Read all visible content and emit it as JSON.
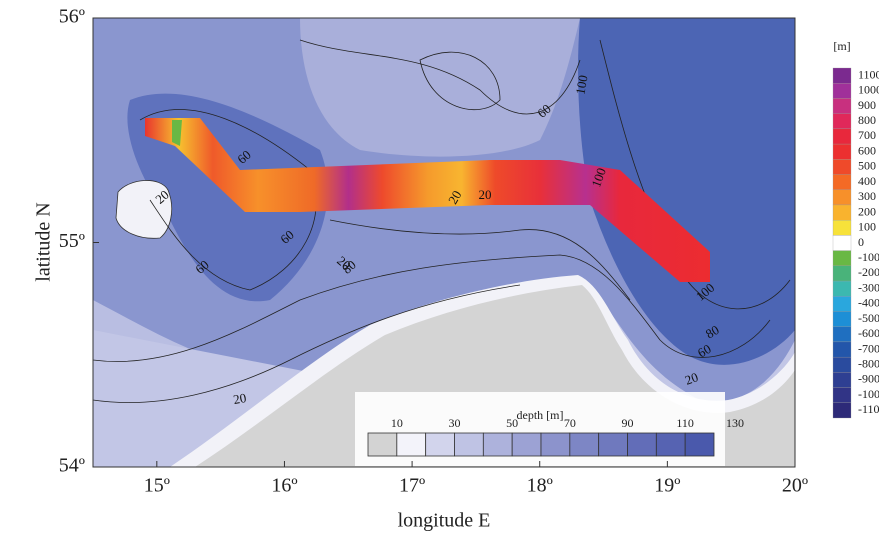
{
  "map": {
    "xlabel": "longitude E",
    "ylabel": "latitude N",
    "xlim": [
      14.5,
      20
    ],
    "ylim": [
      54,
      56
    ],
    "xticks": [
      {
        "value": 15,
        "label": "15º"
      },
      {
        "value": 16,
        "label": "16º"
      },
      {
        "value": 17,
        "label": "17º"
      },
      {
        "value": 18,
        "label": "18º"
      },
      {
        "value": 19,
        "label": "19º"
      },
      {
        "value": 20,
        "label": "20º"
      }
    ],
    "yticks": [
      {
        "value": 54,
        "label": "54º"
      },
      {
        "value": 55,
        "label": "55º"
      },
      {
        "value": 56,
        "label": "56º"
      }
    ],
    "contour_labels": [
      "60",
      "20",
      "100",
      "100",
      "60",
      "60",
      "20",
      "80",
      "20",
      "60",
      "20",
      "100",
      "80",
      "60",
      "20",
      "20"
    ]
  },
  "colorbar": {
    "title": "[m]",
    "ticks": [
      1100,
      1000,
      900,
      800,
      700,
      600,
      500,
      400,
      300,
      200,
      100,
      0,
      -100,
      -200,
      -300,
      -400,
      -500,
      -600,
      -700,
      -800,
      -900,
      -1000,
      -1100
    ],
    "colors": [
      "#7b2a8f",
      "#a0309a",
      "#c8307f",
      "#e0285a",
      "#e8283c",
      "#ec3030",
      "#ef4a2a",
      "#f46a25",
      "#f7902a",
      "#f9b32e",
      "#f7e23a",
      "#ffffff",
      "#69b844",
      "#49b37a",
      "#3cb8b0",
      "#2aa7dd",
      "#1d8fd6",
      "#1f6fc0",
      "#2356aa",
      "#2a4b9e",
      "#2e3f92",
      "#313486",
      "#2d2a78"
    ]
  },
  "depth_legend": {
    "title": "depth [m]",
    "ticks": [
      10,
      30,
      50,
      70,
      90,
      110,
      130
    ],
    "colors": [
      "#d3d3d3",
      "#f3f3fa",
      "#d2d4ec",
      "#bfc3e4",
      "#adb2dc",
      "#9ca2d4",
      "#8c93cc",
      "#7d86c5",
      "#6f79be",
      "#626db8",
      "#5663b2",
      "#4a59ac"
    ]
  }
}
